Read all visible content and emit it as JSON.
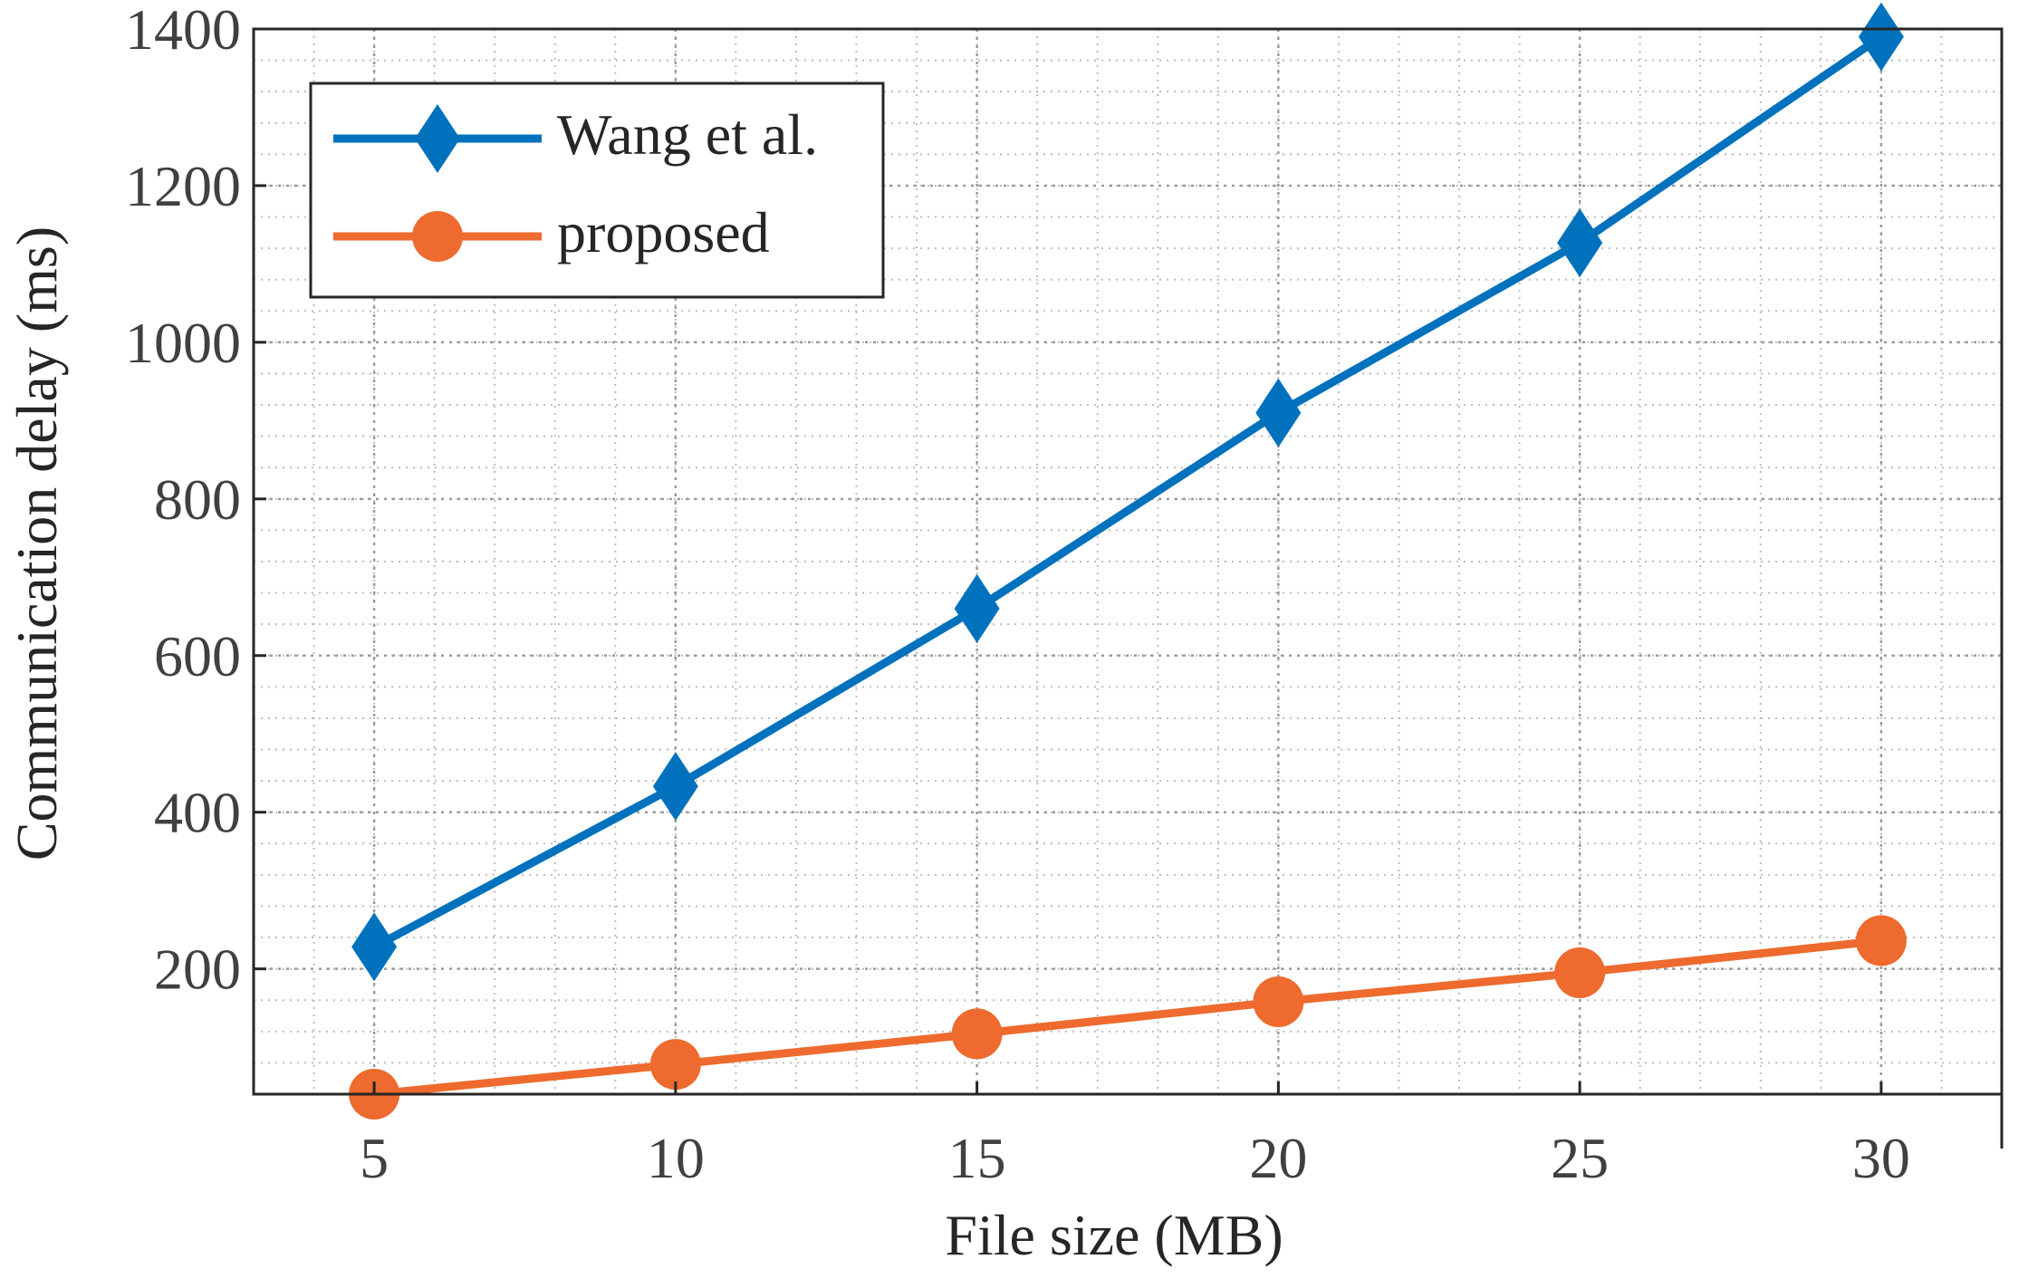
{
  "chart_data": {
    "type": "line",
    "xlabel": "File size (MB)",
    "ylabel": "Communication delay (ms)",
    "x": [
      5,
      10,
      15,
      20,
      25,
      30
    ],
    "xlim": [
      3,
      32
    ],
    "ylim": [
      40,
      1400
    ],
    "x_ticks": [
      5,
      10,
      15,
      20,
      25,
      30
    ],
    "y_ticks": [
      200,
      400,
      600,
      800,
      1000,
      1200,
      1400
    ],
    "grid": "on (major and minor, dotted)",
    "legend_position": "top-left",
    "series": [
      {
        "name": "Wang et al.",
        "marker": "diamond",
        "color": "#0072BD",
        "values": [
          228,
          433,
          660,
          910,
          1127,
          1390
        ]
      },
      {
        "name": "proposed",
        "marker": "circle",
        "color": "#EE6A2E",
        "values": [
          40,
          78,
          117,
          158,
          195,
          236
        ]
      }
    ]
  }
}
